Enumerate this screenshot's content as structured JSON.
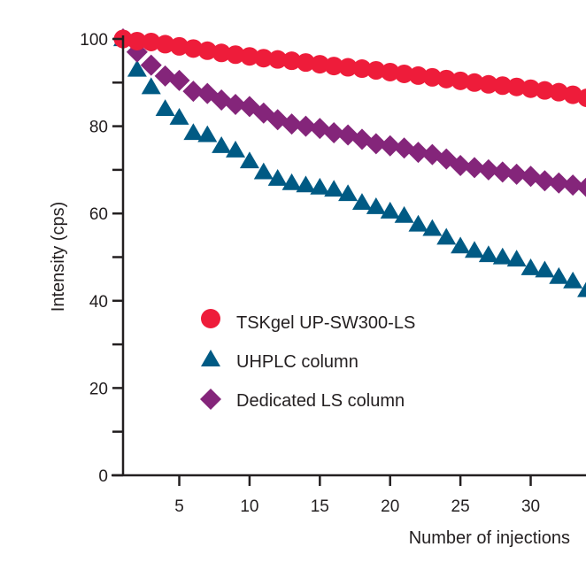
{
  "chart_data": {
    "type": "scatter",
    "title": "",
    "xlabel": "Number of injections",
    "ylabel": "Intensity (cps)",
    "xlim": [
      1,
      34
    ],
    "ylim": [
      0,
      100
    ],
    "x_ticks": [
      5,
      10,
      15,
      20,
      25,
      30
    ],
    "y_ticks": [
      0,
      20,
      40,
      60,
      80,
      100
    ],
    "y_minor_ticks": [
      10,
      30,
      50,
      70,
      90
    ],
    "grid": false,
    "legend_position": "center-left",
    "x": [
      1,
      2,
      3,
      4,
      5,
      6,
      7,
      8,
      9,
      10,
      11,
      12,
      13,
      14,
      15,
      16,
      17,
      18,
      19,
      20,
      21,
      22,
      23,
      24,
      25,
      26,
      27,
      28,
      29,
      30,
      31,
      32,
      33,
      34
    ],
    "series": [
      {
        "name": "TSKgel UP-SW300-LS",
        "marker": "circle",
        "color": "#ee1c3a",
        "values": [
          100,
          99.5,
          99.3,
          98.8,
          98.3,
          97.8,
          97.3,
          96.8,
          96.4,
          96.0,
          95.6,
          95.3,
          95.0,
          94.6,
          94.2,
          93.8,
          93.5,
          93.2,
          92.8,
          92.4,
          92.0,
          91.6,
          91.2,
          90.8,
          90.4,
          90.0,
          89.6,
          89.3,
          89.0,
          88.6,
          88.2,
          87.8,
          87.2,
          86.5
        ]
      },
      {
        "name": "UHPLC column",
        "marker": "triangle",
        "color": "#005a84",
        "values": [
          100,
          93,
          89,
          84,
          82,
          78.5,
          78,
          75.5,
          74.5,
          72,
          69.5,
          68,
          67,
          66.5,
          66,
          65.5,
          64.5,
          62.5,
          61.5,
          60.5,
          59.5,
          57.5,
          56.5,
          54.5,
          52.5,
          51.5,
          50.5,
          50,
          49.5,
          47.5,
          47,
          45.5,
          44.5,
          42.5
        ]
      },
      {
        "name": "Dedicated LS column",
        "marker": "diamond",
        "color": "#84257a",
        "values": [
          100,
          97,
          94,
          91.5,
          90.5,
          88,
          87.5,
          86,
          85,
          84.5,
          83,
          81.5,
          80.5,
          80,
          79.5,
          78.5,
          78,
          77,
          76,
          75.5,
          75,
          74,
          73.5,
          72.5,
          71,
          70.5,
          70,
          69.5,
          69,
          68.5,
          67.5,
          67,
          66.5,
          66
        ]
      }
    ]
  }
}
